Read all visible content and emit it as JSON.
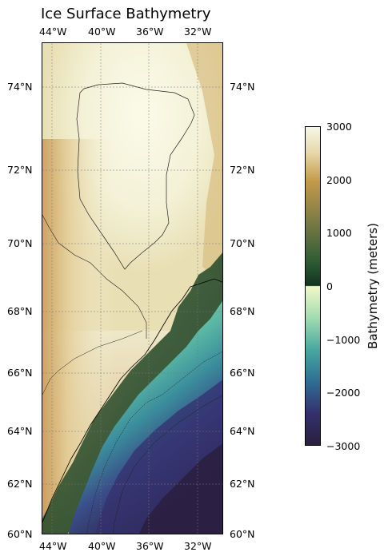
{
  "title": "Ice Surface Bathymetry",
  "map": {
    "lon_range": [
      -45.0,
      -30.5
    ],
    "lat_range": [
      60.0,
      75.2
    ],
    "lon_ticks": [
      {
        "value": -44,
        "label": "44°W"
      },
      {
        "value": -40,
        "label": "40°W"
      },
      {
        "value": -36,
        "label": "36°W"
      },
      {
        "value": -32,
        "label": "32°W"
      }
    ],
    "lat_ticks": [
      {
        "value": 74,
        "label": "74°N"
      },
      {
        "value": 72,
        "label": "72°N"
      },
      {
        "value": 70,
        "label": "70°N"
      },
      {
        "value": 68,
        "label": "68°N"
      },
      {
        "value": 66,
        "label": "66°N"
      },
      {
        "value": 64,
        "label": "64°N"
      },
      {
        "value": 62,
        "label": "62°N"
      },
      {
        "value": 60,
        "label": "60°N"
      }
    ],
    "gridlines": true,
    "features": [
      {
        "type": "ice-sheet-interior-contour",
        "description_shape": "high plateau outline"
      },
      {
        "type": "coastline",
        "description_shape": "southeast Greenland coast"
      }
    ]
  },
  "colorbar": {
    "label": "Bathymetry (meters)",
    "range": [
      -3000,
      3000
    ],
    "ticks": [
      {
        "value": 3000,
        "label": "3000"
      },
      {
        "value": 2000,
        "label": "2000"
      },
      {
        "value": 1000,
        "label": "1000"
      },
      {
        "value": 0,
        "label": "0"
      },
      {
        "value": -1000,
        "label": "−1000"
      },
      {
        "value": -2000,
        "label": "−2000"
      },
      {
        "value": -3000,
        "label": "−3000"
      }
    ],
    "colors_land": [
      "#113320",
      "#2f5d35",
      "#7a7a45",
      "#c49a4a",
      "#e0c998",
      "#f7f7e6"
    ],
    "colors_sea": [
      "#2a1f3e",
      "#34306e",
      "#2f6f93",
      "#48a8a0",
      "#a2dcb0",
      "#f2f8c8"
    ]
  }
}
